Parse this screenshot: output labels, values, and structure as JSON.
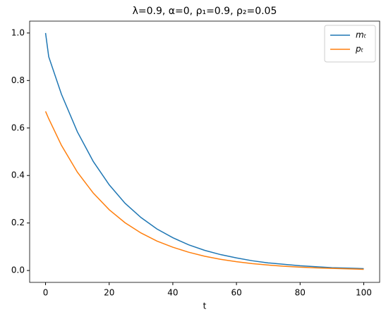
{
  "chart_data": {
    "type": "line",
    "title": "λ=0.9, α=0, ρ₁=0.9, ρ₂=0.05",
    "xlabel": "t",
    "x": [
      0,
      1,
      5,
      10,
      15,
      20,
      25,
      30,
      35,
      40,
      45,
      50,
      55,
      60,
      65,
      70,
      75,
      80,
      85,
      90,
      95,
      100
    ],
    "series": [
      {
        "name": "mₜ",
        "color": "#1f77b4",
        "values": [
          1.0,
          0.9,
          0.742,
          0.584,
          0.459,
          0.361,
          0.283,
          0.223,
          0.175,
          0.138,
          0.108,
          0.085,
          0.067,
          0.053,
          0.041,
          0.032,
          0.026,
          0.02,
          0.016,
          0.012,
          0.01,
          0.008
        ]
      },
      {
        "name": "pₜ",
        "color": "#ff7f0e",
        "values": [
          0.67,
          0.639,
          0.527,
          0.414,
          0.326,
          0.256,
          0.201,
          0.158,
          0.124,
          0.098,
          0.077,
          0.06,
          0.047,
          0.037,
          0.029,
          0.023,
          0.018,
          0.014,
          0.011,
          0.009,
          0.007,
          0.005
        ]
      }
    ],
    "xlim": [
      -5,
      105
    ],
    "ylim": [
      -0.05,
      1.05
    ],
    "xticks": [
      0,
      20,
      40,
      60,
      80,
      100
    ],
    "yticks": [
      {
        "value": 0,
        "label": "0.0"
      },
      {
        "value": 0.2,
        "label": "0.2"
      },
      {
        "value": 0.4,
        "label": "0.4"
      },
      {
        "value": 0.6,
        "label": "0.6"
      },
      {
        "value": 0.8,
        "label": "0.8"
      },
      {
        "value": 1,
        "label": "1.0"
      }
    ],
    "grid": false,
    "legend": "upper right"
  }
}
